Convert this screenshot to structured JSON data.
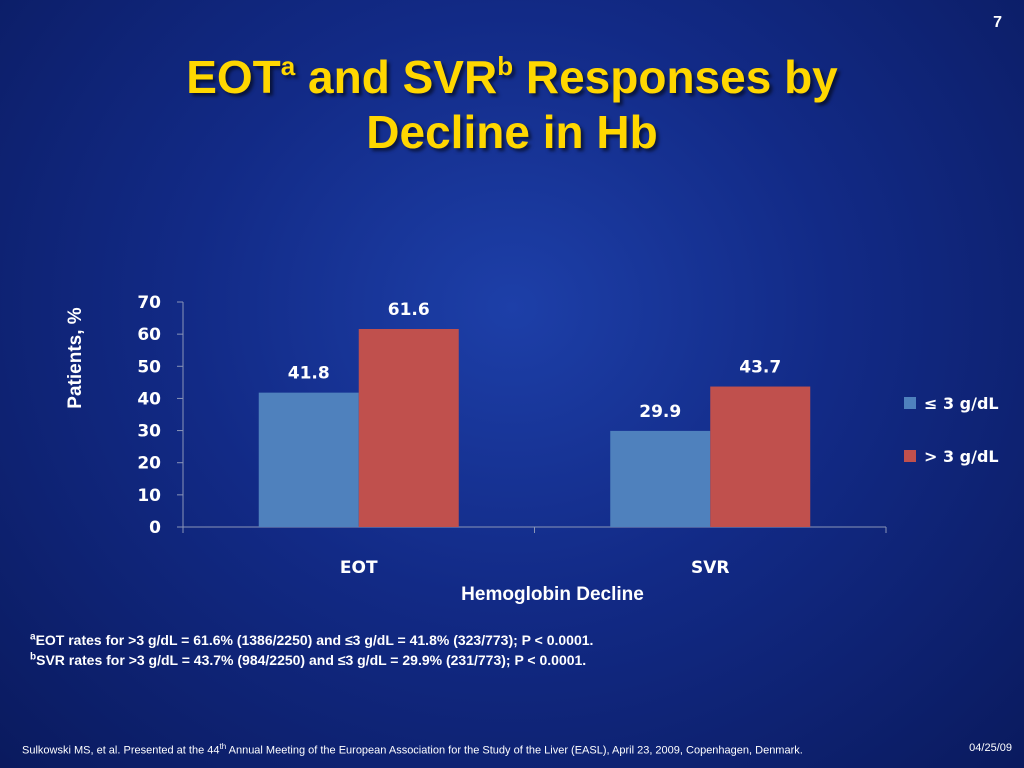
{
  "slide_number": "7",
  "title": {
    "part1": "EOT",
    "sup_a": "a",
    "part2": " and SVR",
    "sup_b": "b",
    "part3": " Responses by",
    "line2": "Decline in Hb"
  },
  "colors": {
    "series_le3": "#4f81bd",
    "series_gt3": "#c0504d",
    "title": "#ffd700"
  },
  "chart_data": {
    "type": "bar",
    "categories": [
      "EOT",
      "SVR"
    ],
    "series": [
      {
        "name": "≤ 3 g/dL",
        "values": [
          41.8,
          29.9
        ]
      },
      {
        "name": "> 3 g/dL",
        "values": [
          61.6,
          43.7
        ]
      }
    ],
    "data_labels": [
      [
        "41.8",
        "29.9"
      ],
      [
        "61.6",
        "43.7"
      ]
    ],
    "xlabel": "Hemoglobin Decline",
    "ylabel": "Patients, %",
    "ylim": [
      0,
      70
    ],
    "yticks": [
      0,
      10,
      20,
      30,
      40,
      50,
      60,
      70
    ],
    "grid": false,
    "legend_position": "right"
  },
  "footnotes": [
    {
      "marker": "a",
      "text": "EOT rates for >3 g/dL = 61.6% (1386/2250) and ≤3 g/dL = 41.8% (323/773); P < 0.0001."
    },
    {
      "marker": "b",
      "text": "SVR rates for >3 g/dL = 43.7% (984/2250) and ≤3 g/dL = 29.9% (231/773); P < 0.0001."
    }
  ],
  "citation": {
    "text_before": "Sulkowski MS, et al. Presented at the 44",
    "sup": "th",
    "text_after": " Annual Meeting of the European Association for the Study of the Liver (EASL), April 23, 2009, Copenhagen, Denmark.",
    "date": "04/25/09"
  }
}
